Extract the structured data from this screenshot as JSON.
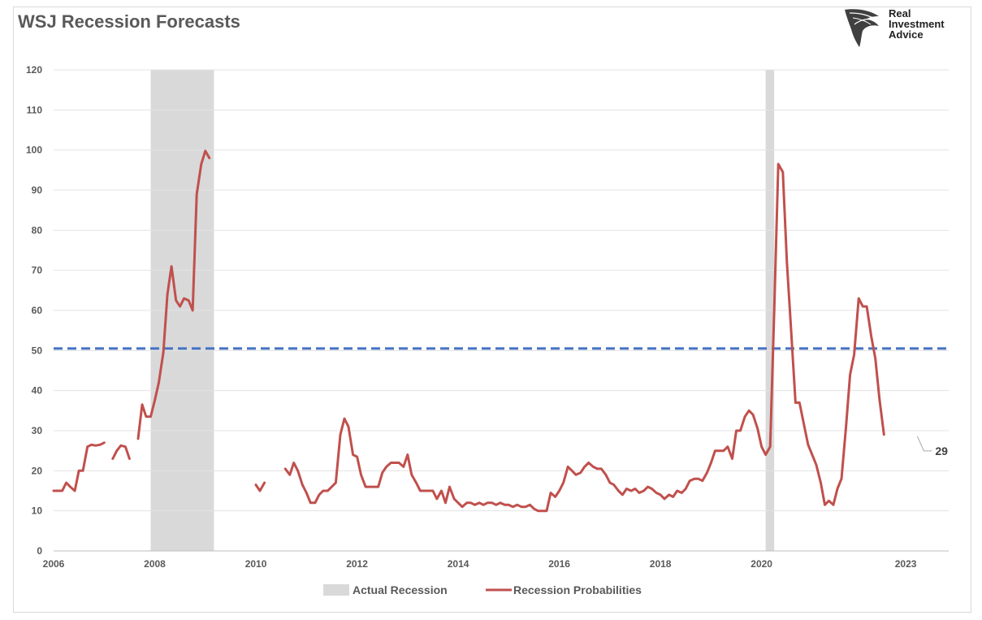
{
  "header": {
    "title": "WSJ Recession Forecasts"
  },
  "logo": {
    "line1": "Real",
    "line2": "Investment",
    "line3": "Advice"
  },
  "chart_data": {
    "type": "line",
    "title": "WSJ Recession Forecasts",
    "xlabel": "",
    "ylabel": "",
    "xlim": [
      2006.0,
      2023.7
    ],
    "ylim": [
      0,
      120
    ],
    "x_ticks": [
      "2006",
      "2008",
      "2010",
      "2012",
      "2014",
      "2016",
      "2018",
      "2020",
      "2023"
    ],
    "x_tick_values": [
      2006,
      2008,
      2010,
      2012,
      2014,
      2016,
      2018,
      2020,
      2022.85
    ],
    "y_ticks": [
      "0",
      "10",
      "20",
      "30",
      "40",
      "50",
      "60",
      "70",
      "80",
      "90",
      "100",
      "110",
      "120"
    ],
    "grid": true,
    "legend": {
      "placement": "bottom",
      "entries": [
        "Actual Recession",
        "Recession Probabilities"
      ]
    },
    "threshold": {
      "value": 50.5,
      "style": "dashed",
      "color": "#4472c4"
    },
    "recessions": [
      {
        "start": 2007.92,
        "end": 2009.17
      },
      {
        "start": 2020.08,
        "end": 2020.25
      }
    ],
    "annotation": {
      "text": "29",
      "x": 2023.08,
      "y": 29
    },
    "series": [
      {
        "name": "Recession Probabilities",
        "color": "#c0504d",
        "segments": [
          [
            [
              2006.0,
              15
            ],
            [
              2006.08,
              15
            ],
            [
              2006.17,
              15
            ],
            [
              2006.25,
              17
            ],
            [
              2006.33,
              16
            ],
            [
              2006.42,
              15
            ],
            [
              2006.5,
              20
            ],
            [
              2006.58,
              20
            ],
            [
              2006.67,
              26
            ],
            [
              2006.75,
              26.5
            ],
            [
              2006.83,
              26.3
            ],
            [
              2006.92,
              26.5
            ],
            [
              2007.0,
              27
            ]
          ],
          [
            [
              2007.17,
              23
            ],
            [
              2007.25,
              25
            ],
            [
              2007.33,
              26.3
            ],
            [
              2007.42,
              26
            ],
            [
              2007.5,
              23
            ]
          ],
          [
            [
              2007.67,
              28
            ],
            [
              2007.75,
              36.5
            ],
            [
              2007.83,
              33.5
            ],
            [
              2007.92,
              33.5
            ],
            [
              2008.0,
              37.5
            ],
            [
              2008.08,
              42
            ],
            [
              2008.17,
              49.5
            ],
            [
              2008.25,
              64
            ],
            [
              2008.33,
              71
            ],
            [
              2008.42,
              62.5
            ],
            [
              2008.5,
              61
            ],
            [
              2008.58,
              63
            ],
            [
              2008.67,
              62.5
            ],
            [
              2008.75,
              60
            ],
            [
              2008.83,
              89
            ],
            [
              2008.92,
              96.5
            ],
            [
              2009.0,
              99.8
            ],
            [
              2009.08,
              98
            ]
          ],
          [
            [
              2010.0,
              16.5
            ],
            [
              2010.08,
              15
            ],
            [
              2010.17,
              17
            ]
          ],
          [
            [
              2010.58,
              20.5
            ],
            [
              2010.67,
              19
            ],
            [
              2010.75,
              22
            ],
            [
              2010.83,
              20
            ],
            [
              2010.92,
              16.5
            ],
            [
              2011.0,
              14.5
            ],
            [
              2011.08,
              12
            ],
            [
              2011.17,
              12
            ],
            [
              2011.25,
              14
            ],
            [
              2011.33,
              15
            ],
            [
              2011.42,
              15
            ],
            [
              2011.5,
              16
            ],
            [
              2011.58,
              17
            ],
            [
              2011.67,
              29
            ],
            [
              2011.75,
              33
            ],
            [
              2011.83,
              31
            ],
            [
              2011.92,
              24
            ],
            [
              2012.0,
              23.5
            ],
            [
              2012.08,
              19
            ],
            [
              2012.17,
              16
            ],
            [
              2012.25,
              16
            ],
            [
              2012.33,
              16
            ],
            [
              2012.42,
              16
            ],
            [
              2012.5,
              19.5
            ],
            [
              2012.58,
              21
            ],
            [
              2012.67,
              22
            ],
            [
              2012.75,
              22
            ],
            [
              2012.83,
              22
            ],
            [
              2012.92,
              21
            ],
            [
              2013.0,
              24
            ],
            [
              2013.08,
              19
            ],
            [
              2013.17,
              17
            ],
            [
              2013.25,
              15
            ],
            [
              2013.33,
              15
            ],
            [
              2013.42,
              15
            ],
            [
              2013.5,
              15
            ],
            [
              2013.58,
              13
            ],
            [
              2013.67,
              15
            ],
            [
              2013.75,
              12
            ],
            [
              2013.83,
              16
            ],
            [
              2013.92,
              13
            ],
            [
              2014.0,
              12
            ],
            [
              2014.08,
              11
            ],
            [
              2014.17,
              12
            ],
            [
              2014.25,
              12
            ],
            [
              2014.33,
              11.5
            ],
            [
              2014.42,
              12
            ],
            [
              2014.5,
              11.5
            ],
            [
              2014.58,
              12
            ],
            [
              2014.67,
              12
            ],
            [
              2014.75,
              11.5
            ],
            [
              2014.83,
              12
            ],
            [
              2014.92,
              11.5
            ],
            [
              2015.0,
              11.5
            ],
            [
              2015.08,
              11
            ],
            [
              2015.17,
              11.5
            ],
            [
              2015.25,
              11
            ],
            [
              2015.33,
              11
            ],
            [
              2015.42,
              11.5
            ],
            [
              2015.5,
              10.5
            ],
            [
              2015.58,
              10
            ],
            [
              2015.67,
              10
            ],
            [
              2015.75,
              10
            ],
            [
              2015.83,
              14.5
            ],
            [
              2015.92,
              13.5
            ],
            [
              2016.0,
              15
            ],
            [
              2016.08,
              17
            ],
            [
              2016.17,
              21
            ],
            [
              2016.25,
              20
            ],
            [
              2016.33,
              19
            ],
            [
              2016.42,
              19.5
            ],
            [
              2016.5,
              21
            ],
            [
              2016.58,
              22
            ],
            [
              2016.67,
              21
            ],
            [
              2016.75,
              20.5
            ],
            [
              2016.83,
              20.5
            ],
            [
              2016.92,
              19
            ],
            [
              2017.0,
              17
            ],
            [
              2017.08,
              16.5
            ],
            [
              2017.17,
              15
            ],
            [
              2017.25,
              14
            ],
            [
              2017.33,
              15.5
            ],
            [
              2017.42,
              15
            ],
            [
              2017.5,
              15.5
            ],
            [
              2017.58,
              14.5
            ],
            [
              2017.67,
              15
            ],
            [
              2017.75,
              16
            ],
            [
              2017.83,
              15.5
            ],
            [
              2017.92,
              14.5
            ],
            [
              2018.0,
              14
            ],
            [
              2018.08,
              13
            ],
            [
              2018.17,
              14
            ],
            [
              2018.25,
              13.5
            ],
            [
              2018.33,
              15
            ],
            [
              2018.42,
              14.5
            ],
            [
              2018.5,
              15.5
            ],
            [
              2018.58,
              17.5
            ],
            [
              2018.67,
              18
            ],
            [
              2018.75,
              18
            ],
            [
              2018.83,
              17.5
            ],
            [
              2018.92,
              19.5
            ],
            [
              2019.0,
              22
            ],
            [
              2019.08,
              25
            ],
            [
              2019.17,
              25
            ],
            [
              2019.25,
              25
            ],
            [
              2019.33,
              26
            ],
            [
              2019.42,
              23
            ],
            [
              2019.5,
              30
            ],
            [
              2019.58,
              30
            ],
            [
              2019.67,
              33.5
            ],
            [
              2019.75,
              35
            ],
            [
              2019.83,
              34
            ],
            [
              2019.92,
              30.5
            ],
            [
              2020.0,
              26
            ],
            [
              2020.08,
              24
            ],
            [
              2020.17,
              26
            ],
            [
              2020.25,
              60
            ],
            [
              2020.33,
              96.5
            ],
            [
              2020.42,
              94.5
            ],
            [
              2020.5,
              72
            ],
            [
              2020.58,
              56
            ],
            [
              2020.67,
              37
            ],
            [
              2020.75,
              37
            ],
            [
              2020.83,
              32
            ],
            [
              2020.92,
              26.5
            ],
            [
              2021.0,
              24
            ],
            [
              2021.08,
              21.5
            ],
            [
              2021.17,
              17
            ],
            [
              2021.25,
              11.5
            ],
            [
              2021.33,
              12.5
            ],
            [
              2021.42,
              11.5
            ],
            [
              2021.5,
              15.5
            ],
            [
              2021.58,
              18
            ],
            [
              2021.67,
              31
            ],
            [
              2021.75,
              44
            ],
            [
              2021.83,
              49
            ],
            [
              2021.92,
              63
            ],
            [
              2022.0,
              61
            ],
            [
              2022.08,
              61
            ],
            [
              2022.17,
              53.5
            ],
            [
              2022.25,
              48
            ],
            [
              2022.33,
              38
            ],
            [
              2022.42,
              29
            ]
          ]
        ]
      }
    ]
  }
}
